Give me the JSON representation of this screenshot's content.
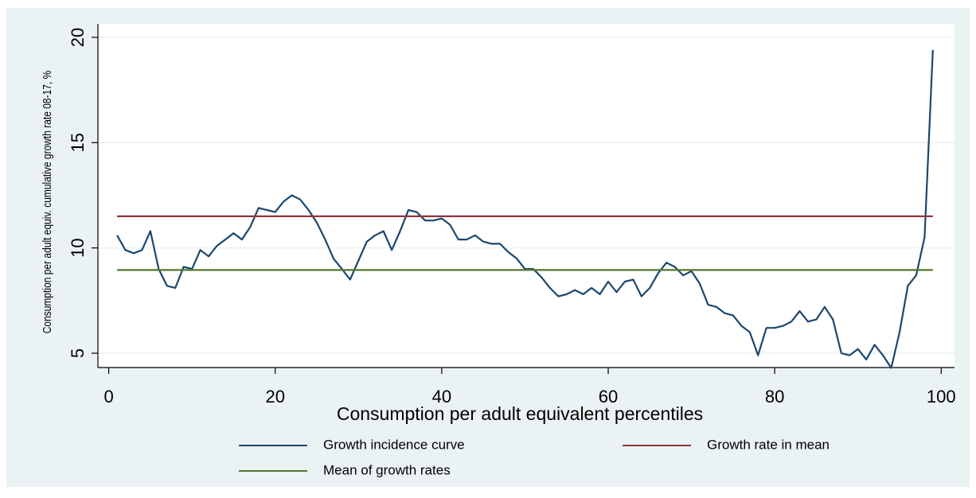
{
  "chart_data": {
    "type": "line",
    "y_label": "Consumption per adult equiv. cumulative growth rate 08-17, %",
    "x_label": "Consumption per adult equivalent percentiles",
    "xlim": [
      -1.3,
      101.6
    ],
    "ylim": [
      4.32,
      20.64
    ],
    "xticks": [
      0,
      20,
      40,
      60,
      80,
      100
    ],
    "yticks": [
      5,
      10,
      15,
      20
    ],
    "grid": true,
    "x": [
      1,
      2,
      3,
      4,
      5,
      6,
      7,
      8,
      9,
      10,
      11,
      12,
      13,
      14,
      15,
      16,
      17,
      18,
      19,
      20,
      21,
      22,
      23,
      24,
      25,
      26,
      27,
      28,
      29,
      30,
      31,
      32,
      33,
      34,
      35,
      36,
      37,
      38,
      39,
      40,
      41,
      42,
      43,
      44,
      45,
      46,
      47,
      48,
      49,
      50,
      51,
      52,
      53,
      54,
      55,
      56,
      57,
      58,
      59,
      60,
      61,
      62,
      63,
      64,
      65,
      66,
      67,
      68,
      69,
      70,
      71,
      72,
      73,
      74,
      75,
      76,
      77,
      78,
      79,
      80,
      81,
      82,
      83,
      84,
      85,
      86,
      87,
      88,
      89,
      90,
      91,
      92,
      93,
      94,
      95,
      96,
      97,
      98,
      99
    ],
    "series": [
      {
        "name": "Growth incidence curve",
        "color": "#1a476f",
        "values": [
          10.6,
          9.9,
          9.75,
          9.9,
          10.8,
          9.0,
          8.2,
          8.1,
          9.1,
          9.0,
          9.9,
          9.6,
          10.1,
          10.4,
          10.7,
          10.4,
          11.0,
          11.9,
          11.8,
          11.7,
          12.2,
          12.5,
          12.3,
          11.8,
          11.2,
          10.4,
          9.5,
          9.0,
          8.5,
          9.4,
          10.3,
          10.6,
          10.8,
          9.9,
          10.8,
          11.8,
          11.7,
          11.3,
          11.3,
          11.4,
          11.1,
          10.4,
          10.4,
          10.6,
          10.3,
          10.2,
          10.2,
          9.8,
          9.5,
          9.0,
          9.0,
          8.6,
          8.1,
          7.7,
          7.8,
          8.0,
          7.8,
          8.1,
          7.8,
          8.4,
          7.9,
          8.4,
          8.5,
          7.7,
          8.1,
          8.8,
          9.3,
          9.1,
          8.7,
          8.9,
          8.3,
          7.3,
          7.2,
          6.9,
          6.8,
          6.3,
          6.0,
          4.9,
          6.2,
          6.2,
          6.3,
          6.5,
          7.0,
          6.5,
          6.6,
          7.2,
          6.6,
          5.0,
          4.9,
          5.2,
          4.7,
          5.4,
          4.9,
          4.3,
          6.0,
          8.2,
          8.7,
          10.5,
          19.4
        ]
      },
      {
        "name": "Growth rate in mean",
        "color": "#90353b",
        "x": [
          1,
          99
        ],
        "values": [
          11.5,
          11.5
        ]
      },
      {
        "name": "Mean of growth rates",
        "color": "#55752f",
        "x": [
          1,
          99
        ],
        "values": [
          8.95,
          8.95
        ]
      }
    ]
  }
}
